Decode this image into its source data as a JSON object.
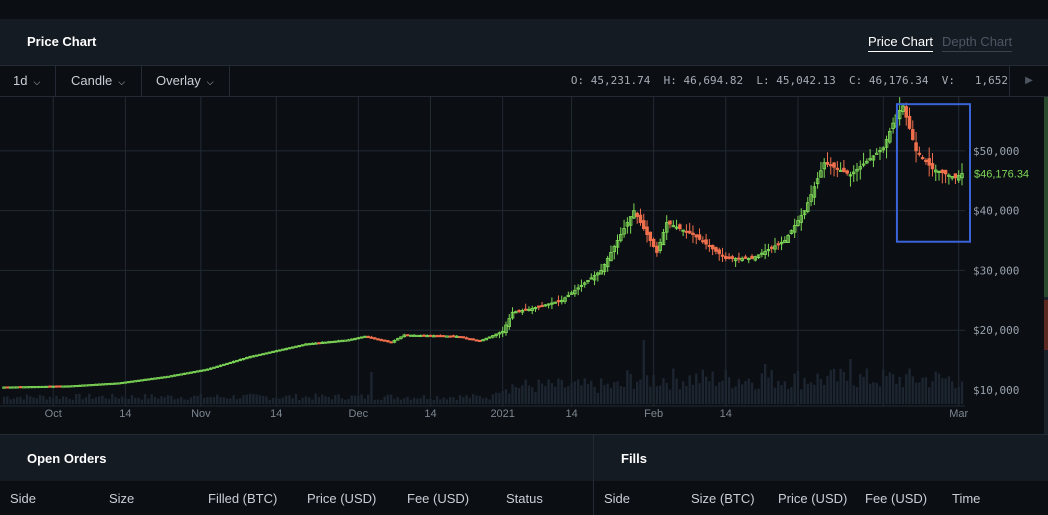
{
  "header": {
    "title": "Price Chart",
    "tabs": [
      {
        "label": "Price Chart",
        "active": true
      },
      {
        "label": "Depth Chart",
        "active": false
      }
    ]
  },
  "toolbar": {
    "interval": "1d",
    "chart_type": "Candle",
    "overlay": "Overlay",
    "ohlc": "O: 45,231.74  H: 46,694.82  L: 45,042.13  C: 46,176.34  V:   1,652",
    "play_icon": "play-icon"
  },
  "chart_data": {
    "type": "candlestick",
    "y_ticks": [
      "$50,000",
      "$40,000",
      "$30,000",
      "$20,000",
      "$10,000"
    ],
    "x_ticks": [
      "Oct",
      "14",
      "Nov",
      "14",
      "Dec",
      "14",
      "2021",
      "14",
      "Feb",
      "14",
      "Mar"
    ],
    "current_price_label": "$46,176.34",
    "ylim": [
      8000,
      59000
    ],
    "colors": {
      "up": "#7ed957",
      "down": "#f0704d",
      "grid": "#222a33",
      "highlight": "#3a63d8"
    },
    "anchors": [
      [
        0,
        10500
      ],
      [
        20,
        10700
      ],
      [
        35,
        11200
      ],
      [
        50,
        12300
      ],
      [
        62,
        13500
      ],
      [
        75,
        15600
      ],
      [
        92,
        17700
      ],
      [
        105,
        18400
      ],
      [
        110,
        19000
      ],
      [
        118,
        18000
      ],
      [
        122,
        19200
      ],
      [
        138,
        19000
      ],
      [
        145,
        18200
      ],
      [
        152,
        19800
      ],
      [
        155,
        23000
      ],
      [
        160,
        23500
      ],
      [
        170,
        25000
      ],
      [
        182,
        30000
      ],
      [
        192,
        40000
      ],
      [
        199,
        33000
      ],
      [
        202,
        38000
      ],
      [
        210,
        36000
      ],
      [
        220,
        32000
      ],
      [
        228,
        32000
      ],
      [
        238,
        35000
      ],
      [
        244,
        40000
      ],
      [
        250,
        48000
      ],
      [
        258,
        46000
      ],
      [
        268,
        50500
      ],
      [
        272,
        56000
      ],
      [
        274,
        57500
      ],
      [
        278,
        50000
      ],
      [
        283,
        47000
      ],
      [
        290,
        45500
      ],
      [
        292,
        46200
      ]
    ],
    "highlight_box": {
      "from_index": 274,
      "to_index": 292,
      "price_top": 57800,
      "price_bottom": 34800
    }
  },
  "open_orders": {
    "title": "Open Orders",
    "columns": [
      "Side",
      "Size",
      "Filled (BTC)",
      "Price (USD)",
      "Fee (USD)",
      "Status"
    ]
  },
  "fills": {
    "title": "Fills",
    "columns": [
      "Side",
      "Size (BTC)",
      "Price (USD)",
      "Fee (USD)",
      "Time"
    ]
  }
}
